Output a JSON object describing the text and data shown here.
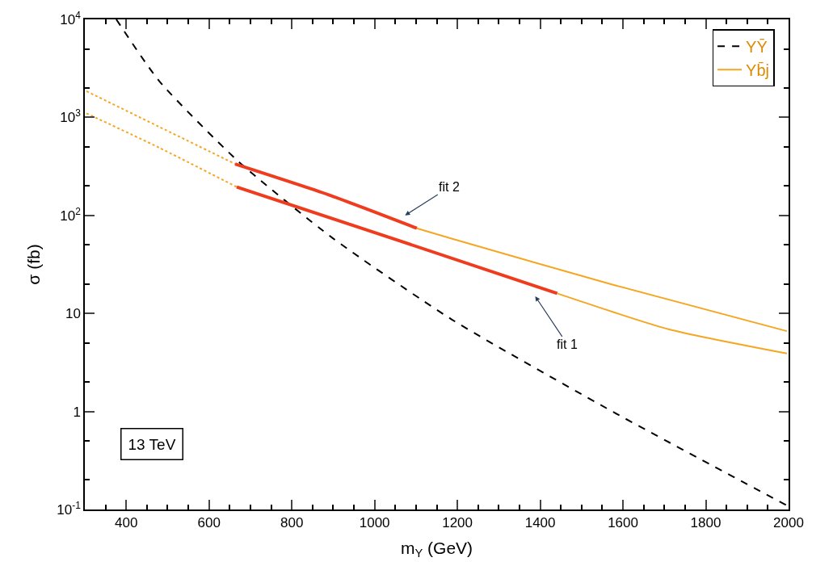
{
  "chart_data": {
    "type": "line",
    "xlabel": "m$_{Y}$ (GeV)",
    "ylabel": "σ (fb)",
    "xlim": [
      300,
      2000
    ],
    "xticks": [
      400,
      600,
      800,
      1000,
      1200,
      1400,
      1600,
      1800,
      2000
    ],
    "ylim": [
      0.1,
      10000
    ],
    "log": "y",
    "yticks": [
      {
        "value": 0.1,
        "label": "10$^{-1}$"
      },
      1,
      10,
      {
        "value": 100,
        "label": "10$^{2}$"
      },
      {
        "value": 1000,
        "label": "10$^{3}$"
      },
      {
        "value": 10000,
        "label": "10$^{4}$"
      }
    ],
    "legend": "top right",
    "marker": "none",
    "series": [
      {
        "name": "YȲ",
        "color": "#000000",
        "line_style": "dashed",
        "x": [
          376,
          480,
          671,
          898,
          1186,
          1578,
          1996
        ],
        "values": [
          10000,
          2340,
          355,
          59,
          8.7,
          0.98,
          0.11
        ]
      },
      {
        "name": "Yb̄j",
        "color": "#f5a623",
        "line_style": "solid",
        "x": [
          1102,
          1186,
          1578,
          1996
        ],
        "values": [
          74,
          58,
          19.5,
          6.6
        ]
      },
      {
        "color": "#f5a623",
        "line_style": "solid",
        "x": [
          1441,
          1710,
          1996
        ],
        "values": [
          16,
          6.9,
          3.9
        ]
      },
      {
        "color": "#f5a623",
        "line_style": "dotted",
        "x": [
          304,
          480,
          663
        ],
        "values": [
          1850,
          800,
          335
        ]
      },
      {
        "color": "#f5a623",
        "line_style": "dotted",
        "x": [
          304,
          480,
          667
        ],
        "values": [
          1100,
          490,
          195
        ]
      },
      {
        "color": "#f03c1e",
        "line_style": "solid",
        "x": [
          663,
          888,
          1102
        ],
        "values": [
          335,
          163,
          74
        ]
      },
      {
        "color": "#f03c1e",
        "line_style": "solid",
        "x": [
          667,
          1039,
          1441
        ],
        "values": [
          195,
          59,
          16
        ]
      }
    ],
    "annotations": [
      "fit 2",
      "fit 1",
      "13 TeV"
    ]
  }
}
